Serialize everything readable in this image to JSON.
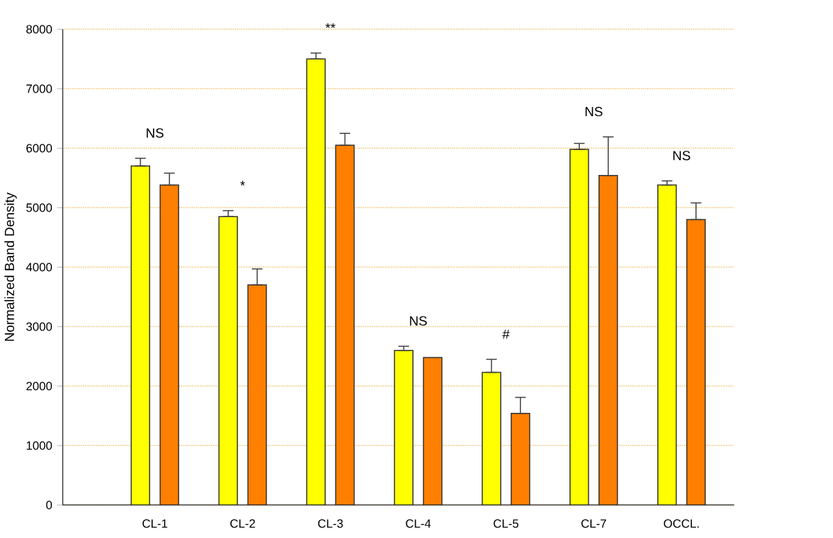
{
  "chart_data": {
    "type": "bar",
    "ylabel": "Normalized Band Density",
    "categories": [
      "CL-1",
      "CL-2",
      "CL-3",
      "CL-4",
      "CL-5",
      "CL-7",
      "OCCL."
    ],
    "series": [
      {
        "color": "#ffff00",
        "values": [
          5700,
          4850,
          7500,
          2600,
          2230,
          5980,
          5380
        ],
        "errors": [
          [
            5700,
            5830
          ],
          [
            4850,
            4950
          ],
          [
            7500,
            7600
          ],
          [
            2600,
            2670
          ],
          [
            2230,
            2450
          ],
          [
            5980,
            6080
          ],
          [
            5380,
            5450
          ]
        ]
      },
      {
        "color": "#ff7f00",
        "values": [
          5380,
          3700,
          6050,
          2480,
          1540,
          5540,
          4800
        ],
        "errors": [
          [
            5380,
            5580
          ],
          [
            3700,
            3970
          ],
          [
            6050,
            6250
          ],
          null,
          [
            1540,
            1810
          ],
          [
            5540,
            6190
          ],
          [
            4800,
            5080
          ]
        ]
      }
    ],
    "ylim": [
      0,
      8000
    ],
    "yticks": [
      0,
      1000,
      2000,
      3000,
      4000,
      5000,
      6000,
      7000,
      8000
    ],
    "grid": "y",
    "annotations": [
      "NS",
      "*",
      "**",
      "NS",
      "#",
      "NS",
      "NS"
    ]
  }
}
